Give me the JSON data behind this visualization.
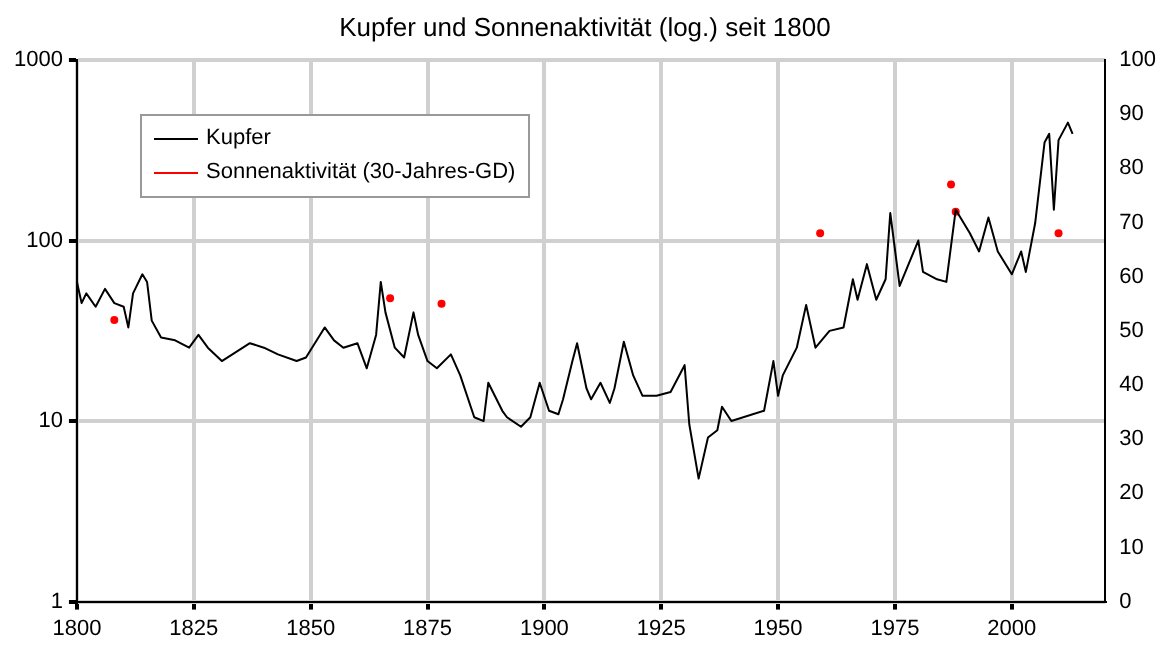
{
  "chart_data": {
    "type": "line",
    "title": "Kupfer und Sonnenaktivität (log.) seit 1800",
    "xlim": [
      1800,
      2020
    ],
    "xticks": [
      1800,
      1825,
      1850,
      1875,
      1900,
      1925,
      1950,
      1975,
      2000
    ],
    "log": "y",
    "ylim": [
      1,
      1000
    ],
    "yticks": [
      1,
      10,
      100,
      1000
    ],
    "y2lim": [
      0,
      100
    ],
    "y2ticks": [
      0,
      10,
      20,
      30,
      40,
      50,
      60,
      70,
      80,
      90,
      100
    ],
    "grid": true,
    "legend": "top left",
    "line_style": "solid",
    "series": [
      {
        "name": "Kupfer",
        "color": "#000000",
        "x": [
          1800,
          1801,
          1802,
          1804,
          1806,
          1808,
          1810,
          1811,
          1812,
          1814,
          1815,
          1816,
          1818,
          1821,
          1824,
          1826,
          1828,
          1831,
          1837,
          1840,
          1843,
          1847,
          1849,
          1853,
          1855,
          1857,
          1860,
          1862,
          1864,
          1865,
          1866,
          1868,
          1870,
          1872,
          1873,
          1875,
          1877,
          1880,
          1882,
          1885,
          1887,
          1888,
          1891,
          1892,
          1895,
          1897,
          1899,
          1901,
          1903,
          1904,
          1906,
          1907,
          1909,
          1910,
          1912,
          1914,
          1915,
          1917,
          1919,
          1921,
          1924,
          1927,
          1930,
          1931,
          1933,
          1935,
          1937,
          1938,
          1940,
          1947,
          1949,
          1950,
          1951,
          1954,
          1956,
          1958,
          1961,
          1964,
          1966,
          1967,
          1969,
          1971,
          1973,
          1974,
          1976,
          1980,
          1981,
          1984,
          1986,
          1988,
          1991,
          1993,
          1995,
          1997,
          2000,
          2002,
          2003,
          2005,
          2007,
          2008,
          2009,
          2010,
          2012,
          2013
        ],
        "values": [
          59,
          45,
          51,
          43,
          54,
          45,
          43,
          33,
          51,
          65,
          59,
          36,
          29,
          28,
          25.5,
          30,
          25.5,
          21.5,
          27,
          25.5,
          23.4,
          21.5,
          22.5,
          33,
          28,
          25.5,
          27,
          19.6,
          30,
          59,
          40,
          25.5,
          22.5,
          40,
          30,
          21.5,
          19.6,
          23.4,
          17.9,
          10.5,
          10,
          16.3,
          11.4,
          10.5,
          9.3,
          10.5,
          16.3,
          11.4,
          10.9,
          13.2,
          21.5,
          27,
          15.2,
          13.2,
          16.3,
          12.6,
          15.2,
          27.5,
          17.9,
          13.8,
          13.8,
          14.5,
          20.4,
          9.6,
          4.8,
          8.1,
          8.9,
          12,
          10,
          11.4,
          21.5,
          13.8,
          17.9,
          25.5,
          44,
          25.5,
          31.6,
          33,
          61,
          47,
          74,
          47,
          61,
          142,
          56,
          100,
          67,
          61,
          59,
          148,
          110,
          87,
          134,
          87,
          65,
          87,
          67,
          125,
          349,
          390,
          148,
          360,
          450,
          390
        ]
      },
      {
        "name": "Sonnenaktivität (30-Jahres-GD)",
        "color": "#ff0000",
        "type": "scatter",
        "axis": "y2",
        "x": [
          1808,
          1867,
          1878,
          1959,
          1987,
          1988,
          2010
        ],
        "values": [
          52,
          56,
          55,
          68,
          77,
          72,
          68
        ]
      }
    ]
  }
}
